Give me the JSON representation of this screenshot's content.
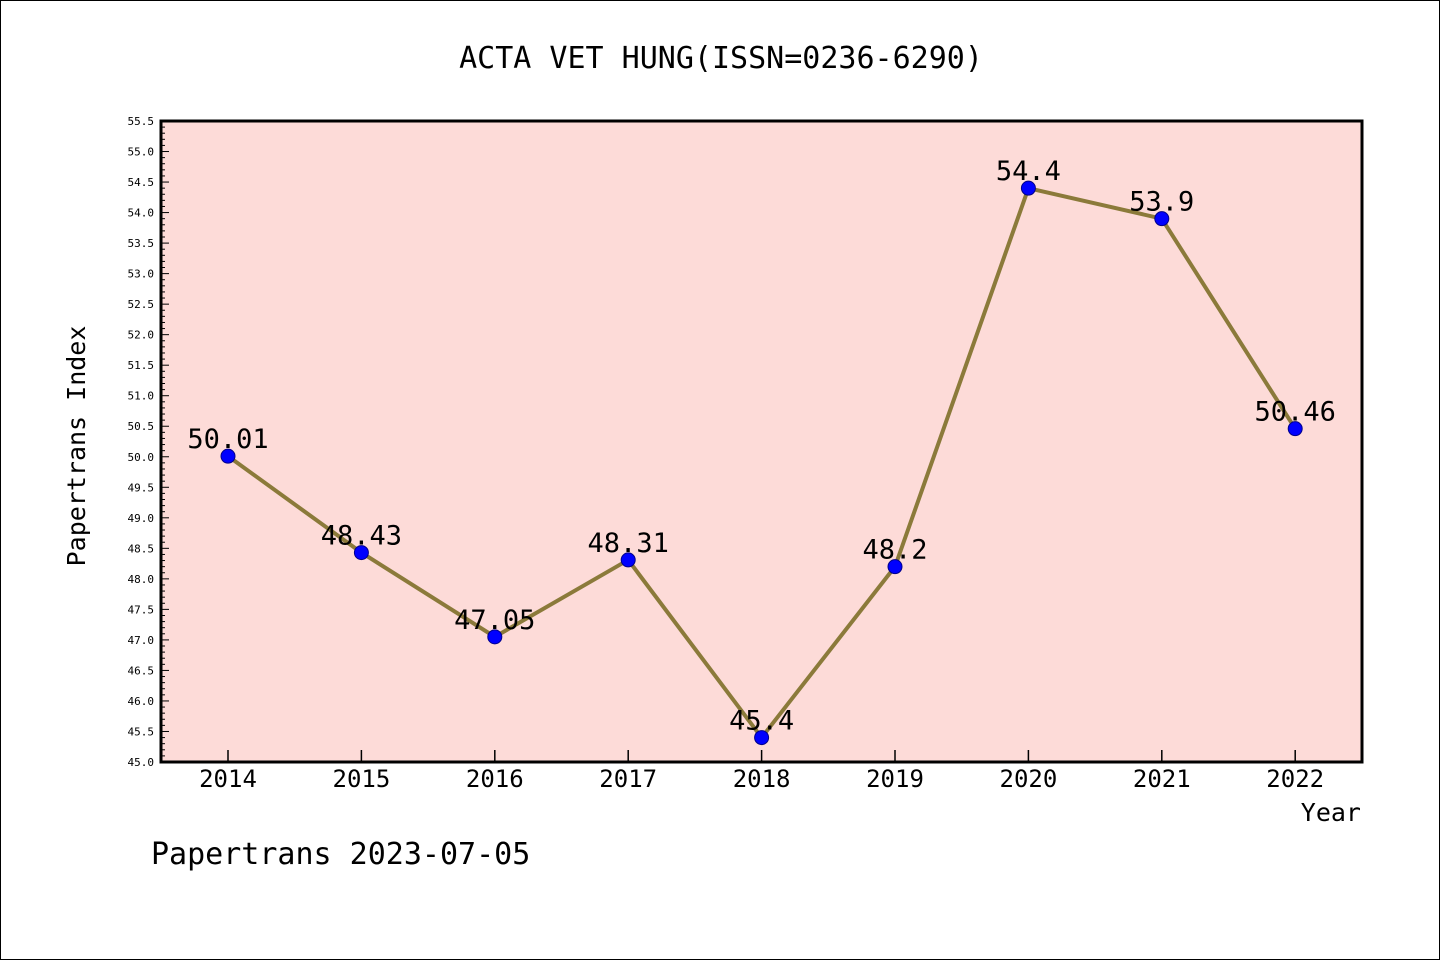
{
  "chart_data": {
    "type": "line",
    "title": "ACTA VET HUNG(ISSN=0236-6290)",
    "xlabel": "Year",
    "ylabel": "Papertrans Index",
    "categories": [
      "2014",
      "2015",
      "2016",
      "2017",
      "2018",
      "2019",
      "2020",
      "2021",
      "2022"
    ],
    "series": [
      {
        "values": [
          50.01,
          48.43,
          47.05,
          48.31,
          45.4,
          48.2,
          54.4,
          53.9,
          50.46
        ],
        "data_labels": [
          "50.01",
          "48.43",
          "47.05",
          "48.31",
          "45.4",
          "48.2",
          "54.4",
          "53.9",
          "50.46"
        ]
      }
    ],
    "ylim": [
      45.0,
      55.5
    ],
    "y_ticks": [
      "45.0",
      "45.5",
      "46.0",
      "46.5",
      "47.0",
      "47.5",
      "48.0",
      "48.5",
      "49.0",
      "49.5",
      "50.0",
      "50.5",
      "51.0",
      "51.5",
      "52.0",
      "52.5",
      "53.0",
      "53.5",
      "54.0",
      "54.5",
      "55.0",
      "55.5"
    ],
    "grid": false,
    "legend": "none",
    "colors": {
      "plot_background": "#fddbd8",
      "line": "#8b7a3a",
      "marker": "#0000ff",
      "marker_edge": "#00008b"
    }
  },
  "footer": {
    "text": "Papertrans 2023-07-05"
  }
}
